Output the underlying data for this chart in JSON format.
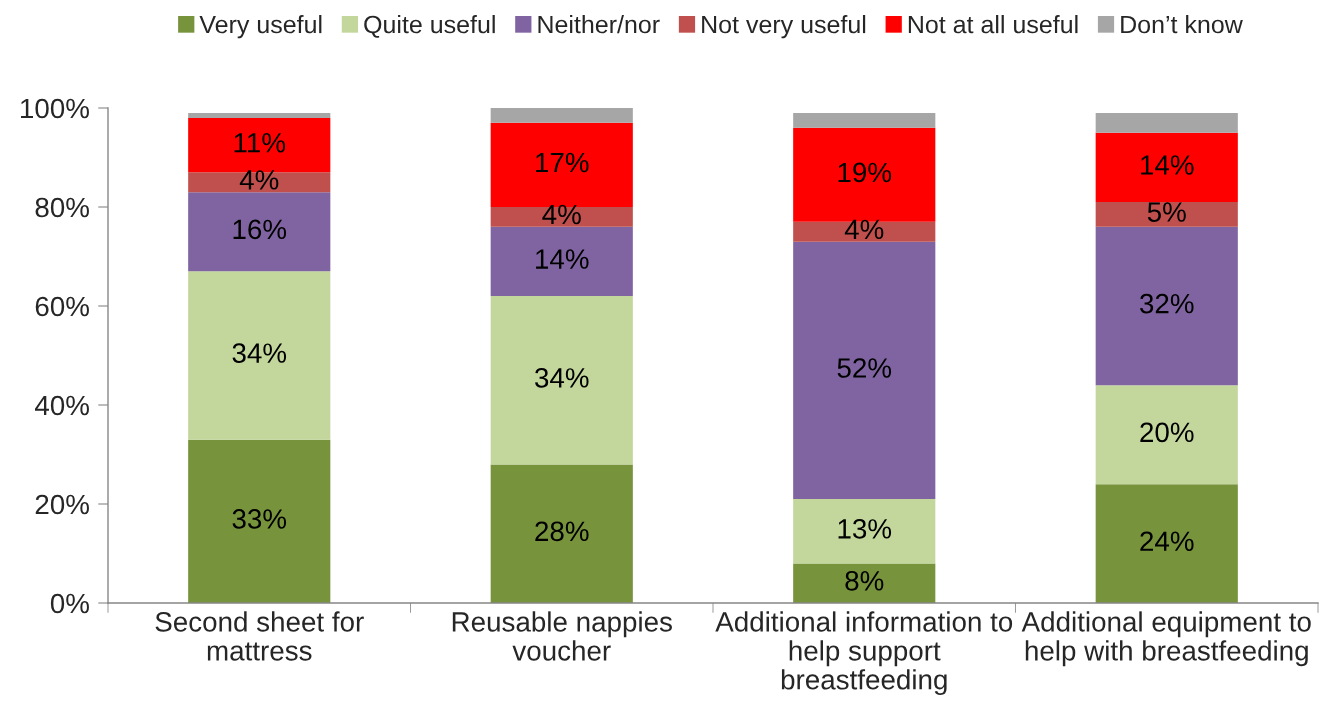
{
  "chart_data": {
    "type": "bar",
    "stacked": true,
    "categories": [
      "Second sheet for\nmattress",
      "Reusable nappies\nvoucher",
      "Additional information to\nhelp support\nbreastfeeding",
      "Additional equipment to\nhelp with breastfeeding"
    ],
    "series": [
      {
        "name": "Very useful",
        "color": "#77933c",
        "values": [
          33,
          28,
          8,
          24
        ],
        "value_labels": [
          "33%",
          "28%",
          "8%",
          "24%"
        ]
      },
      {
        "name": "Quite useful",
        "color": "#c3d69b",
        "values": [
          34,
          34,
          13,
          20
        ],
        "value_labels": [
          "34%",
          "34%",
          "13%",
          "20%"
        ]
      },
      {
        "name": "Neither/nor",
        "color": "#8064a2",
        "values": [
          16,
          14,
          52,
          32
        ],
        "value_labels": [
          "16%",
          "14%",
          "52%",
          "32%"
        ]
      },
      {
        "name": "Not very useful",
        "color": "#c0504d",
        "values": [
          4,
          4,
          4,
          5
        ],
        "value_labels": [
          "4%",
          "4%",
          "4%",
          "5%"
        ]
      },
      {
        "name": "Not at all useful",
        "color": "#ff0000",
        "values": [
          11,
          17,
          19,
          14
        ],
        "value_labels": [
          "11%",
          "17%",
          "19%",
          "14%"
        ]
      },
      {
        "name": "Don’t know",
        "color": "#a6a6a6",
        "values": [
          1,
          3,
          3,
          4
        ]
      }
    ],
    "ylim": [
      0,
      100
    ],
    "yticks": [
      {
        "value": 0,
        "label": "0%"
      },
      {
        "value": 20,
        "label": "20%"
      },
      {
        "value": 40,
        "label": "40%"
      },
      {
        "value": 60,
        "label": "60%"
      },
      {
        "value": 80,
        "label": "80%"
      },
      {
        "value": 100,
        "label": "100%"
      }
    ],
    "legend": "top",
    "grid": false
  }
}
